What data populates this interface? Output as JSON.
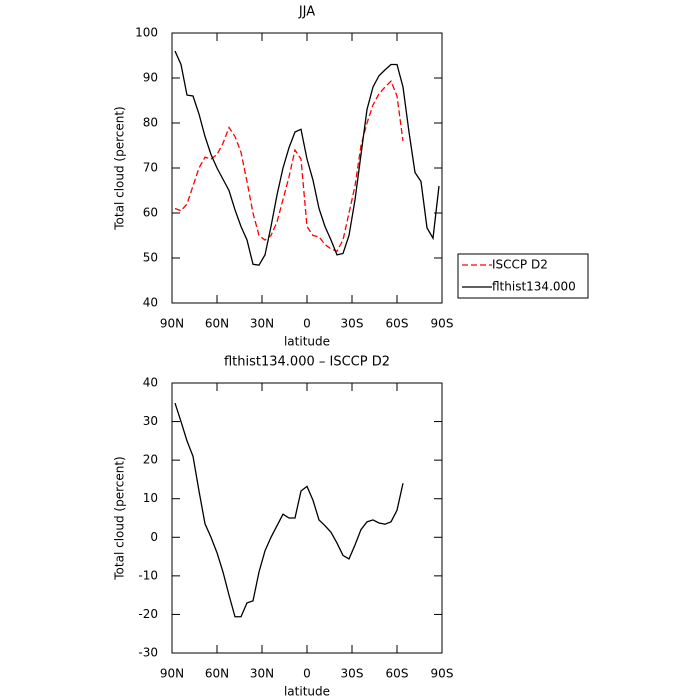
{
  "chart_data": [
    {
      "type": "line",
      "title": "JJA",
      "xlabel": "latitude",
      "ylabel": "Total cloud (percent)",
      "x": [
        88,
        84,
        80,
        76,
        72,
        68,
        64,
        60,
        56,
        52,
        48,
        44,
        40,
        36,
        32,
        28,
        24,
        20,
        16,
        12,
        8,
        4,
        0,
        -4,
        -8,
        -12,
        -16,
        -20,
        -24,
        -28,
        -32,
        -36,
        -40,
        -44,
        -48,
        -52,
        -56,
        -60,
        -64,
        -68,
        -72,
        -76,
        -80,
        -84,
        -88
      ],
      "xlim": [
        90,
        -90
      ],
      "xticks": [
        {
          "value": 90,
          "label": "90N"
        },
        {
          "value": 60,
          "label": "60N"
        },
        {
          "value": 30,
          "label": "30N"
        },
        0,
        {
          "value": -30,
          "label": "30S"
        },
        {
          "value": -60,
          "label": "60S"
        },
        {
          "value": -90,
          "label": "90S"
        }
      ],
      "ylim": [
        40,
        100
      ],
      "yticks": [
        40,
        50,
        60,
        70,
        80,
        90,
        100
      ],
      "series": [
        {
          "name": "ISCCP D2",
          "color": "#ff0000",
          "dashed": true,
          "values": [
            61,
            60.5,
            62,
            66,
            70,
            72.4,
            72,
            73,
            75.5,
            79,
            77,
            73.5,
            67,
            60,
            55,
            54,
            55,
            58,
            63,
            68,
            74,
            72,
            57,
            55,
            54.7,
            53,
            52,
            51.5,
            54,
            60,
            66,
            75,
            80,
            84,
            86.5,
            88,
            89.3,
            86,
            76,
            null,
            null,
            null,
            null,
            null,
            null
          ]
        },
        {
          "name": "flthist134.000",
          "color": "#000000",
          "dashed": false,
          "values": [
            96,
            93,
            86.2,
            86,
            82,
            77,
            73,
            70,
            67.5,
            65,
            60.7,
            57,
            54,
            48.6,
            48.4,
            50.7,
            57,
            64,
            70,
            74.5,
            78,
            78.6,
            72,
            67.3,
            61,
            57,
            54,
            50.7,
            51,
            55,
            62.9,
            73,
            83,
            88,
            90.5,
            91.8,
            93,
            93,
            88,
            78,
            69,
            67,
            56.7,
            54.4,
            66
          ]
        }
      ]
    },
    {
      "type": "line",
      "title": "flthist134.000 – ISCCP D2",
      "xlabel": "latitude",
      "ylabel": "Total cloud (percent)",
      "x": [
        88,
        84,
        80,
        76,
        72,
        68,
        64,
        60,
        56,
        52,
        48,
        44,
        40,
        36,
        32,
        28,
        24,
        20,
        16,
        12,
        8,
        4,
        0,
        -4,
        -8,
        -12,
        -16,
        -20,
        -24,
        -28,
        -32,
        -36,
        -40,
        -44,
        -48,
        -52,
        -56,
        -60,
        -64,
        -68,
        -72,
        -76,
        -80,
        -84,
        -88
      ],
      "xlim": [
        90,
        -90
      ],
      "xticks": [
        {
          "value": 90,
          "label": "90N"
        },
        {
          "value": 60,
          "label": "60N"
        },
        {
          "value": 30,
          "label": "30N"
        },
        0,
        {
          "value": -30,
          "label": "30S"
        },
        {
          "value": -60,
          "label": "60S"
        },
        {
          "value": -90,
          "label": "90S"
        }
      ],
      "ylim": [
        -30,
        40
      ],
      "yticks": [
        -30,
        -20,
        -10,
        0,
        10,
        20,
        30,
        40
      ],
      "color": "#000000",
      "values": [
        34.8,
        30,
        25,
        21,
        12,
        3.5,
        0,
        -4,
        -9,
        -15,
        -20.6,
        -20.6,
        -17,
        -16.5,
        -9,
        -3.5,
        0,
        3,
        6,
        5,
        5,
        12,
        13.2,
        9.6,
        4.5,
        3,
        1.3,
        -1.5,
        -4.7,
        -5.6,
        -2,
        2,
        4,
        4.5,
        3.7,
        3.4,
        4,
        7,
        14,
        null,
        null,
        null,
        null,
        null,
        null
      ]
    }
  ]
}
